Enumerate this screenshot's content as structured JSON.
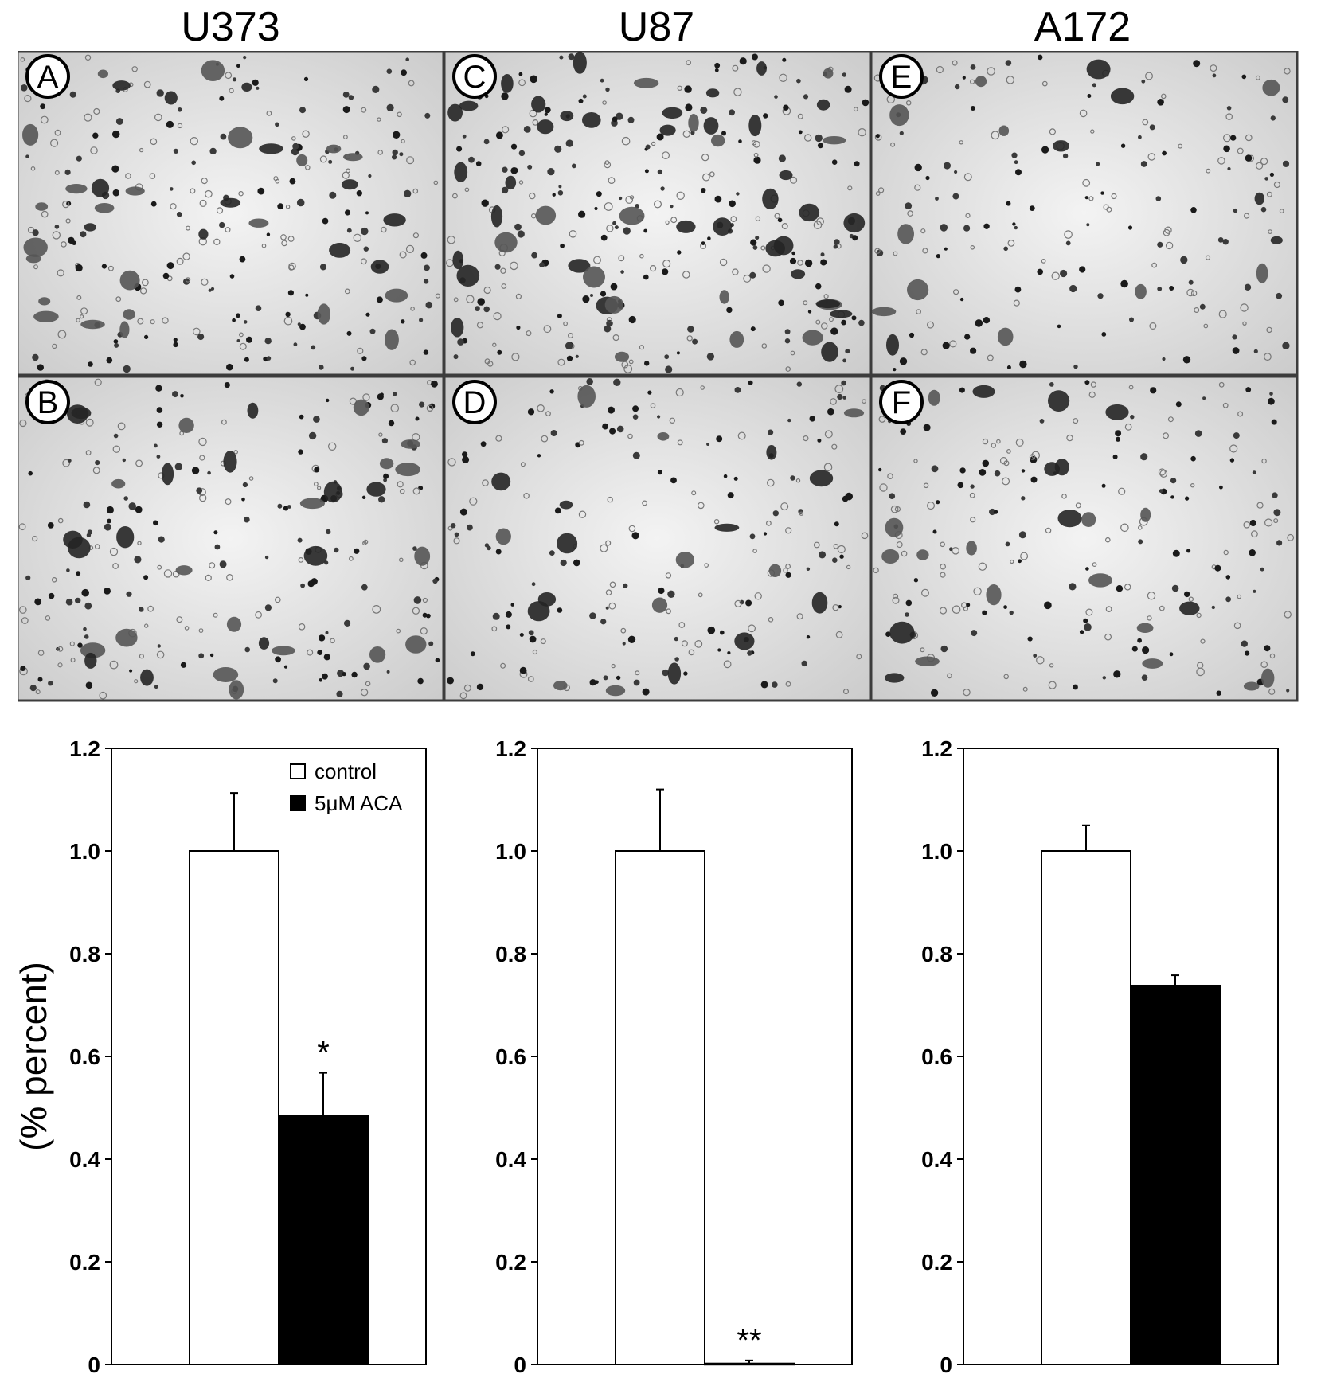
{
  "figure": {
    "columns": [
      "U373",
      "U87",
      "A172"
    ],
    "panel_labels": [
      [
        "A",
        "B"
      ],
      [
        "C",
        "D"
      ],
      [
        "E",
        "F"
      ]
    ],
    "micrograph_density": [
      [
        0.8,
        0.75
      ],
      [
        0.95,
        0.6
      ],
      [
        0.55,
        0.65
      ]
    ],
    "y_axis_title": "(% percent)"
  },
  "chart_data": [
    {
      "type": "bar",
      "categories": [
        "control",
        "5μM ACA"
      ],
      "values": [
        1.0,
        0.485
      ],
      "errors": [
        0.113,
        0.083
      ],
      "significance": [
        "",
        "*"
      ],
      "ylim": [
        0,
        1.2
      ],
      "yticks": [
        "0",
        "0.2",
        "0.4",
        "0.6",
        "0.8",
        "1.0",
        "1.2"
      ],
      "ylabel": "(% percent)",
      "legend": [
        "control",
        "5μM ACA"
      ],
      "legend_position": "top-right",
      "colors": [
        "#ffffff",
        "#000000"
      ],
      "grid": false
    },
    {
      "type": "bar",
      "categories": [
        "control",
        "5μM ACA"
      ],
      "values": [
        1.0,
        0.002
      ],
      "errors": [
        0.12,
        0.006
      ],
      "significance": [
        "",
        "**"
      ],
      "ylim": [
        0,
        1.2
      ],
      "yticks": [
        "0",
        "0.2",
        "0.4",
        "0.6",
        "0.8",
        "1.0",
        "1.2"
      ],
      "colors": [
        "#ffffff",
        "#000000"
      ],
      "grid": false
    },
    {
      "type": "bar",
      "categories": [
        "control",
        "5μM ACA"
      ],
      "values": [
        1.0,
        0.738
      ],
      "errors": [
        0.05,
        0.02
      ],
      "significance": [
        "",
        ""
      ],
      "ylim": [
        0,
        1.2
      ],
      "yticks": [
        "0",
        "0.2",
        "0.4",
        "0.6",
        "0.8",
        "1.0",
        "1.2"
      ],
      "colors": [
        "#ffffff",
        "#000000"
      ],
      "grid": false
    }
  ]
}
